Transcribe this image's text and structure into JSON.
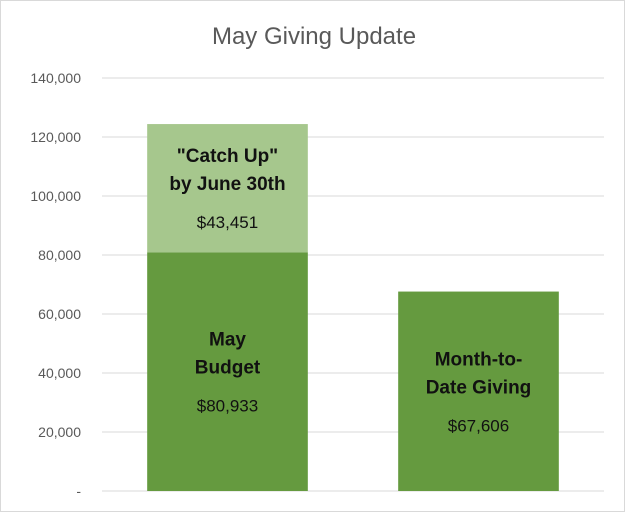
{
  "chart_data": {
    "type": "bar",
    "stacked": true,
    "title": "May Giving Update",
    "xlabel": "",
    "ylabel": "",
    "ylim": [
      0,
      140000
    ],
    "yticks": [
      {
        "value": 0,
        "label": "-"
      },
      {
        "value": 20000,
        "label": "20,000"
      },
      {
        "value": 40000,
        "label": "40,000"
      },
      {
        "value": 60000,
        "label": "60,000"
      },
      {
        "value": 80000,
        "label": "80,000"
      },
      {
        "value": 100000,
        "label": "100,000"
      },
      {
        "value": 120000,
        "label": "120,000"
      },
      {
        "value": 140000,
        "label": "140,000"
      }
    ],
    "grid": true,
    "legend": "none",
    "bars": [
      {
        "segments": [
          {
            "label_lines": [
              "May",
              "Budget"
            ],
            "value": 80933,
            "value_label": "$80,933",
            "color": "#659a3f"
          },
          {
            "label_lines": [
              "\"Catch Up\"",
              "by June 30th"
            ],
            "value": 43451,
            "value_label": "$43,451",
            "color": "#a6c78d"
          }
        ]
      },
      {
        "segments": [
          {
            "label_lines": [
              "Month-to-",
              "Date Giving"
            ],
            "value": 67606,
            "value_label": "$67,606",
            "color": "#659a3f"
          }
        ]
      }
    ]
  }
}
